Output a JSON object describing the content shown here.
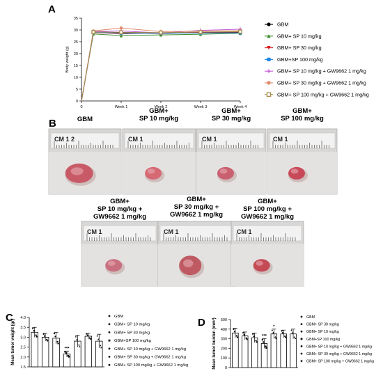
{
  "panels": {
    "a": "A",
    "b": "B",
    "c": "C",
    "d": "D"
  },
  "chart_data": [
    {
      "type": "line",
      "ylabel": "Body weight (g)",
      "xlabel": "",
      "x_ticks": [
        "0",
        "Week 1",
        "Week 2",
        "Week 3",
        "Week 4"
      ],
      "y_ticks": [
        "0",
        "5",
        "10",
        "15",
        "20",
        "25",
        "30",
        "35"
      ],
      "ylim": [
        0,
        35
      ],
      "legend_position": "right",
      "series": [
        {
          "name": "GBM",
          "color": "#000000",
          "marker": "circle",
          "values": [
            0,
            29.2,
            28.9,
            28.5,
            28.9,
            29.0
          ]
        },
        {
          "name": "GBM+ SP 10 mg/kg",
          "color": "#3a8a2a",
          "marker": "triangle-up",
          "values": [
            0,
            28.3,
            27.6,
            27.9,
            28.2,
            28.6
          ]
        },
        {
          "name": "GBM+ SP 30 mg/kg",
          "color": "#d81b1b",
          "marker": "triangle-down",
          "values": [
            0,
            28.9,
            28.4,
            28.8,
            29.0,
            29.2
          ]
        },
        {
          "name": "GBM+SP 100 mg/kg",
          "color": "#1e88e5",
          "marker": "square",
          "values": [
            0,
            29.0,
            28.6,
            28.6,
            28.7,
            28.8
          ]
        },
        {
          "name": "GBM+ SP 10 mg/kg + GW9662 1 mg/kg",
          "color": "#c45bd6",
          "marker": "plus",
          "values": [
            0,
            29.3,
            29.6,
            28.7,
            29.8,
            30.3
          ]
        },
        {
          "name": "GBM+ SP 30 mg/kg + GW9662 1 mg/kg",
          "color": "#e08a6a",
          "marker": "circle",
          "values": [
            0,
            29.6,
            30.8,
            29.3,
            29.5,
            29.7
          ]
        },
        {
          "name": "GBM+ SP 100 mg/kg + GW9662 1 mg/kg",
          "color": "#a88a4a",
          "marker": "square-open",
          "values": [
            0,
            29.1,
            29.0,
            28.9,
            29.1,
            29.3
          ]
        }
      ],
      "x_positions": [
        0,
        0.3,
        1,
        2,
        3,
        4
      ]
    },
    {
      "type": "bar",
      "ylabel": "Mean tumor weight (gr)",
      "ylim": [
        1.5,
        4.0
      ],
      "y_ticks": [
        "1.5",
        "2.0",
        "2.5",
        "3.0",
        "3.5",
        "4.0"
      ],
      "categories": [
        "GBM",
        "GBM+ SP 10 mg/kg",
        "GBM+ SP 30 mg/kg",
        "GBM+SP 100 mg/kg",
        "GBM+ SP 10 mg/kg + GW9662 1 mg/kg",
        "GBM+ SP 30 mg/kg + GW9662 1 mg/kg",
        "GBM+ SP 100 mg/kg + GW9662 1 mg/kg"
      ],
      "values": [
        3.25,
        3.0,
        2.95,
        2.15,
        2.8,
        3.05,
        2.8
      ],
      "errors": [
        0.25,
        0.2,
        0.3,
        0.15,
        0.3,
        0.15,
        0.35
      ],
      "annotations": [
        "",
        "",
        "",
        "***",
        "",
        "",
        ""
      ],
      "legend_position": "right"
    },
    {
      "type": "bar",
      "ylabel": "Mean tumor burden (mm³)",
      "ylim": [
        0,
        500
      ],
      "y_ticks": [
        "0",
        "100",
        "200",
        "300",
        "400",
        "500"
      ],
      "categories": [
        "GBM",
        "GBM+ SP 30 mg/kg",
        "GBM+ SP 10 mg/kg",
        "GBM+SP 100 mg/kg",
        "GBM+ SP 10 mg/kg + GW9662 1 mg/kg",
        "GBM+ SP 30 mg/kg + GW9662 1 mg/kg",
        "GBM+ SP 100 mg/kg + GW9662 1 mg/kg"
      ],
      "values": [
        360,
        330,
        310,
        250,
        350,
        350,
        350
      ],
      "errors": [
        50,
        40,
        50,
        50,
        50,
        40,
        50
      ],
      "annotations": [
        "",
        "",
        "",
        "***",
        "*",
        "",
        ""
      ],
      "legend_position": "right"
    }
  ],
  "panelB": {
    "photos": [
      {
        "title": "GBM",
        "ruler": "CM  1      2"
      },
      {
        "title": "GBM+\nSP 10 mg/kg",
        "ruler": "CM  1"
      },
      {
        "title": "GBM+\nSP 30 mg/kg",
        "ruler": "CM  1"
      },
      {
        "title": "GBM+\nSP 100 mg/kg",
        "ruler": "CM  1"
      },
      {
        "title": "GBM+\nSP 10 mg/kg +\nGW9662 1 mg/kg",
        "ruler": "CM  1"
      },
      {
        "title": "GBM+\nSP 30 mg/kg +\nGW9662 1 mg/kg",
        "ruler": "CM  1"
      },
      {
        "title": "GBM+\nSP 100 mg/kg +\nGW9662 1 mg/kg",
        "ruler": "CM  1"
      }
    ]
  }
}
